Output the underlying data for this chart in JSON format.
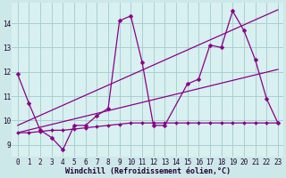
{
  "bg_color": "#cce8e8",
  "plot_bg_color": "#d8f0f0",
  "grid_color": "#aad0d0",
  "line_color": "#880088",
  "marker": "D",
  "markersize": 2.5,
  "linewidth": 0.9,
  "xlabel": "Windchill (Refroidissement éolien,°C)",
  "xlabel_fontsize": 6.0,
  "tick_fontsize": 5.5,
  "ylim": [
    8.5,
    14.85
  ],
  "xlim": [
    -0.5,
    23.5
  ],
  "yticks": [
    9,
    10,
    11,
    12,
    13,
    14
  ],
  "xticks": [
    0,
    1,
    2,
    3,
    4,
    5,
    6,
    7,
    8,
    9,
    10,
    11,
    12,
    13,
    14,
    15,
    16,
    17,
    18,
    19,
    20,
    21,
    22,
    23
  ],
  "series": [
    {
      "x": [
        0,
        1,
        2,
        3,
        4,
        5,
        6,
        7,
        8,
        9,
        10,
        11,
        12,
        13,
        14,
        15,
        16,
        17,
        18,
        19,
        20,
        21,
        22,
        23
      ],
      "y": [
        9.5,
        9.5,
        9.55,
        9.6,
        9.6,
        9.65,
        9.7,
        9.75,
        9.8,
        9.85,
        9.9,
        9.9,
        9.9,
        9.9,
        9.9,
        9.9,
        9.9,
        9.9,
        9.9,
        9.9,
        9.9,
        9.9,
        9.9,
        9.9
      ],
      "marker": true,
      "markersize": 2.0
    },
    {
      "x": [
        0,
        23
      ],
      "y": [
        9.5,
        12.1
      ],
      "marker": false,
      "markersize": 0
    },
    {
      "x": [
        0,
        23
      ],
      "y": [
        9.8,
        14.55
      ],
      "marker": false,
      "markersize": 0
    },
    {
      "x": [
        0,
        1,
        2,
        3,
        4,
        5,
        6,
        7,
        8,
        9,
        10,
        11,
        12,
        13,
        15,
        16,
        17,
        18,
        19,
        20,
        21,
        22,
        23
      ],
      "y": [
        11.9,
        10.7,
        9.6,
        9.3,
        8.8,
        9.8,
        9.8,
        10.2,
        10.5,
        14.1,
        14.3,
        12.4,
        9.8,
        9.8,
        11.5,
        11.7,
        13.1,
        13.0,
        14.5,
        13.7,
        12.5,
        10.9,
        9.9
      ],
      "marker": true,
      "markersize": 2.5
    }
  ]
}
